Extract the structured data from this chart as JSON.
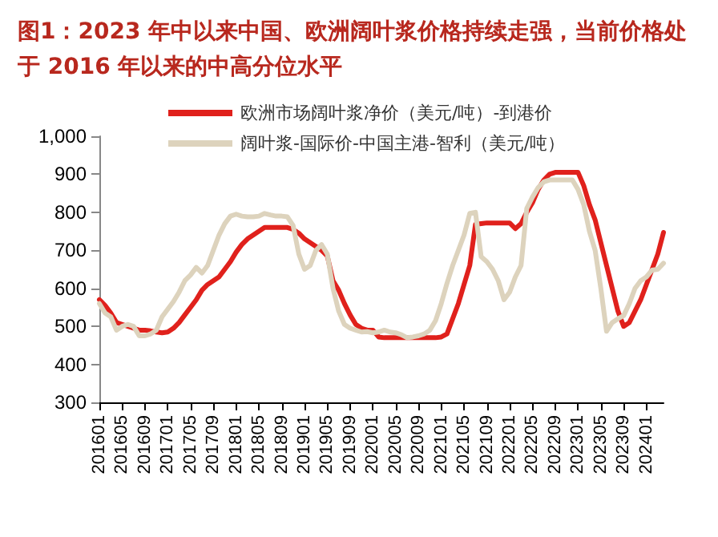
{
  "chart_data": {
    "type": "line",
    "title": "图1：2023 年中以来中国、欧洲阔叶浆价格持续走强，当前价格处于 2016 年以来的中高分位水平",
    "categories": [
      "201601",
      null,
      null,
      null,
      "201605",
      null,
      null,
      null,
      "201609",
      null,
      null,
      null,
      "201701",
      null,
      null,
      null,
      "201705",
      null,
      null,
      null,
      "201709",
      null,
      null,
      null,
      "201801",
      null,
      null,
      null,
      "201805",
      null,
      null,
      null,
      "201809",
      null,
      null,
      null,
      "201901",
      null,
      null,
      null,
      "201905",
      null,
      null,
      null,
      "201909",
      null,
      null,
      null,
      "202001",
      null,
      null,
      null,
      "202005",
      null,
      null,
      null,
      "202009",
      null,
      null,
      null,
      "202101",
      null,
      null,
      null,
      "202105",
      null,
      null,
      null,
      "202109",
      null,
      null,
      null,
      "202201",
      null,
      null,
      null,
      "202205",
      null,
      null,
      null,
      "202209",
      null,
      null,
      null,
      "202301",
      null,
      null,
      null,
      "202305",
      null,
      null,
      null,
      "202309",
      null,
      null,
      null,
      "202401",
      null,
      null,
      null
    ],
    "series": [
      {
        "name": "欧洲市场阔叶浆净价（美元/吨）-到港价",
        "color": "#e0211c",
        "values": [
          570,
          555,
          535,
          510,
          505,
          500,
          495,
          490,
          490,
          488,
          485,
          483,
          485,
          495,
          510,
          530,
          550,
          570,
          595,
          610,
          620,
          630,
          650,
          670,
          695,
          715,
          730,
          740,
          750,
          760,
          760,
          760,
          760,
          760,
          755,
          745,
          730,
          720,
          710,
          700,
          685,
          620,
          595,
          560,
          530,
          505,
          495,
          490,
          490,
          472,
          470,
          470,
          470,
          470,
          470,
          470,
          470,
          470,
          470,
          470,
          472,
          480,
          520,
          560,
          610,
          660,
          768,
          770,
          772,
          772,
          772,
          772,
          772,
          757,
          770,
          800,
          825,
          860,
          885,
          900,
          905,
          905,
          905,
          905,
          905,
          870,
          820,
          780,
          720,
          660,
          600,
          540,
          500,
          510,
          540,
          570,
          610,
          650,
          690,
          747
        ]
      },
      {
        "name": "阔叶浆-国际价-中国主港-智利（美元/吨）",
        "color": "#ddd3bd",
        "values": [
          560,
          535,
          525,
          490,
          500,
          505,
          500,
          475,
          475,
          480,
          490,
          525,
          545,
          565,
          590,
          620,
          635,
          655,
          640,
          660,
          700,
          740,
          770,
          790,
          795,
          790,
          788,
          788,
          790,
          797,
          793,
          790,
          790,
          788,
          765,
          690,
          650,
          660,
          700,
          715,
          690,
          600,
          540,
          505,
          495,
          490,
          485,
          486,
          483,
          485,
          490,
          485,
          483,
          478,
          470,
          472,
          475,
          480,
          490,
          515,
          560,
          613,
          660,
          700,
          740,
          797,
          800,
          683,
          670,
          650,
          620,
          570,
          590,
          630,
          660,
          810,
          840,
          865,
          880,
          885,
          885,
          885,
          885,
          885,
          860,
          820,
          750,
          700,
          600,
          487,
          510,
          520,
          528,
          560,
          600,
          620,
          630,
          648,
          650,
          666
        ]
      }
    ],
    "ylim": [
      300,
      1000
    ],
    "yticks": [
      300,
      400,
      500,
      600,
      700,
      800,
      900,
      {
        "value": 1000,
        "label": "1,000"
      }
    ],
    "legend": "top",
    "grid": false,
    "marker": "none",
    "line_style": "solid"
  }
}
